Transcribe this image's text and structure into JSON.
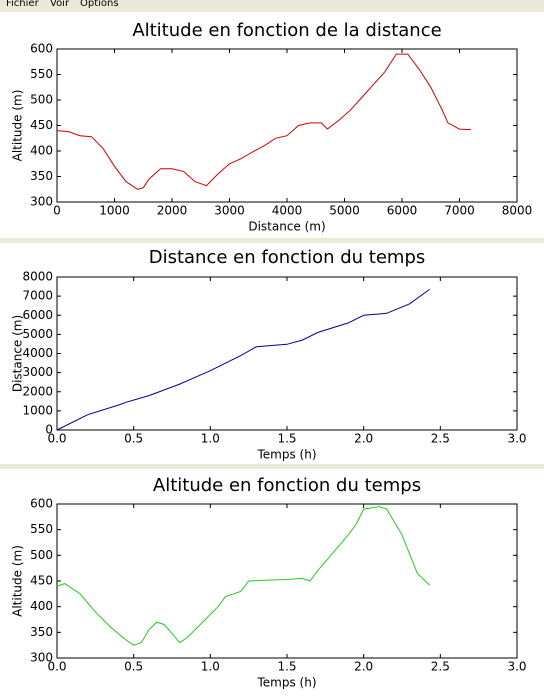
{
  "menu": [
    "Fichier",
    "Voir",
    "Options"
  ],
  "chart_data": [
    {
      "type": "line",
      "title": "Altitude en fonction de la distance",
      "xlabel": "Distance (m)",
      "ylabel": "Altitude (m)",
      "x": [
        0,
        200,
        400,
        600,
        800,
        1000,
        1200,
        1400,
        1500,
        1600,
        1800,
        2000,
        2200,
        2400,
        2600,
        2800,
        3000,
        3200,
        3400,
        3600,
        3800,
        4000,
        4200,
        4400,
        4600,
        4700,
        4900,
        5100,
        5300,
        5500,
        5700,
        5900,
        6100,
        6300,
        6500,
        6700,
        6800,
        7000,
        7200
      ],
      "values": [
        440,
        438,
        430,
        428,
        405,
        370,
        340,
        325,
        328,
        345,
        365,
        365,
        360,
        340,
        332,
        355,
        375,
        385,
        398,
        410,
        425,
        430,
        450,
        455,
        455,
        443,
        460,
        480,
        505,
        530,
        555,
        590,
        590,
        560,
        525,
        480,
        455,
        443,
        442
      ],
      "color": "#cc0000",
      "xlim": [
        0,
        8000
      ],
      "xticks": [
        0,
        1000,
        2000,
        3000,
        4000,
        5000,
        6000,
        7000,
        8000
      ],
      "ylim": [
        300,
        600
      ],
      "yticks": [
        300,
        350,
        400,
        450,
        500,
        550,
        600
      ]
    },
    {
      "type": "line",
      "title": "Distance en fonction du temps",
      "xlabel": "Temps (h)",
      "ylabel": "Distance (m)",
      "x": [
        0,
        0.2,
        0.4,
        0.45,
        0.6,
        0.8,
        1.0,
        1.2,
        1.3,
        1.5,
        1.6,
        1.7,
        1.9,
        2.0,
        2.15,
        2.3,
        2.43
      ],
      "values": [
        0,
        800,
        1300,
        1450,
        1800,
        2400,
        3100,
        3900,
        4350,
        4480,
        4700,
        5100,
        5600,
        6000,
        6100,
        6600,
        7350
      ],
      "color": "#000099",
      "xlim": [
        0,
        3
      ],
      "xticks": [
        {
          "value": 0,
          "label": "0.0"
        },
        0.5,
        {
          "value": 1,
          "label": "1.0"
        },
        1.5,
        {
          "value": 2,
          "label": "2.0"
        },
        2.5,
        {
          "value": 3,
          "label": "3.0"
        }
      ],
      "ylim": [
        0,
        8000
      ],
      "yticks": [
        0,
        1000,
        2000,
        3000,
        4000,
        5000,
        6000,
        7000,
        8000
      ]
    },
    {
      "type": "line",
      "title": "Altitude en fonction du temps",
      "xlabel": "Temps (h)",
      "ylabel": "Altitude (m)",
      "x": [
        0,
        0.05,
        0.15,
        0.25,
        0.35,
        0.45,
        0.5,
        0.55,
        0.6,
        0.65,
        0.7,
        0.75,
        0.8,
        0.85,
        0.95,
        1.05,
        1.1,
        1.2,
        1.25,
        1.4,
        1.5,
        1.6,
        1.65,
        1.7,
        1.8,
        1.9,
        1.95,
        2.0,
        2.1,
        2.15,
        2.25,
        2.35,
        2.43
      ],
      "values": [
        440,
        445,
        425,
        390,
        360,
        335,
        325,
        330,
        355,
        370,
        365,
        348,
        330,
        340,
        370,
        400,
        420,
        430,
        450,
        452,
        453,
        455,
        450,
        470,
        505,
        540,
        560,
        590,
        595,
        590,
        540,
        465,
        442
      ],
      "color": "#22cc22",
      "xlim": [
        0,
        3
      ],
      "xticks": [
        {
          "value": 0,
          "label": "0.0"
        },
        0.5,
        {
          "value": 1,
          "label": "1.0"
        },
        1.5,
        {
          "value": 2,
          "label": "2.0"
        },
        2.5,
        {
          "value": 3,
          "label": "3.0"
        }
      ],
      "ylim": [
        300,
        600
      ],
      "yticks": [
        300,
        350,
        400,
        450,
        500,
        550,
        600
      ]
    }
  ]
}
